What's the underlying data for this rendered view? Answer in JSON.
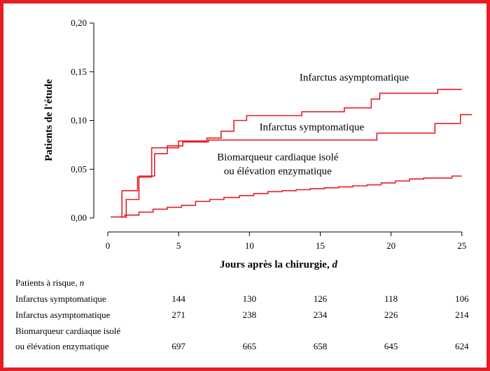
{
  "chart_data": {
    "type": "line",
    "style": "step",
    "ylabel": "Patients de l'étude",
    "xlabel_main": "Jours après la chirurgie, ",
    "xlabel_var": "d",
    "xlim": [
      0,
      25.8
    ],
    "ylim": [
      0,
      0.2
    ],
    "x_ticks": [
      0,
      5,
      10,
      15,
      20,
      25
    ],
    "x_tick_labels": [
      "0",
      "5",
      "10",
      "15",
      "20",
      "25"
    ],
    "y_ticks": [
      0,
      0.05,
      0.1,
      0.15,
      0.2
    ],
    "y_tick_labels": [
      "0,00",
      "0,05",
      "0,10",
      "0,15",
      "0,20"
    ],
    "line_color": "#e41f26",
    "series": [
      {
        "name": "Infarctus asymptomatique",
        "label_lines": [
          "Infarctus asymptomatique"
        ],
        "points": [
          [
            1,
            0
          ],
          [
            1,
            0.028
          ],
          [
            2.1,
            0.028
          ],
          [
            2.1,
            0.042
          ],
          [
            3.1,
            0.042
          ],
          [
            3.1,
            0.072
          ],
          [
            5,
            0.072
          ],
          [
            5,
            0.079
          ],
          [
            7,
            0.079
          ],
          [
            7,
            0.082
          ],
          [
            8,
            0.082
          ],
          [
            8,
            0.089
          ],
          [
            8.9,
            0.089
          ],
          [
            8.9,
            0.1
          ],
          [
            9.8,
            0.1
          ],
          [
            9.8,
            0.105
          ],
          [
            13.7,
            0.105
          ],
          [
            13.7,
            0.109
          ],
          [
            16.7,
            0.109
          ],
          [
            16.7,
            0.113
          ],
          [
            18.6,
            0.113
          ],
          [
            18.6,
            0.122
          ],
          [
            19.2,
            0.122
          ],
          [
            19.2,
            0.128
          ],
          [
            23.3,
            0.128
          ],
          [
            23.3,
            0.132
          ],
          [
            25,
            0.132
          ]
        ]
      },
      {
        "name": "Infarctus symptomatique",
        "label_lines": [
          "Infarctus symptomatique"
        ],
        "points": [
          [
            1.3,
            0
          ],
          [
            1.3,
            0.019
          ],
          [
            2.2,
            0.019
          ],
          [
            2.2,
            0.043
          ],
          [
            3.3,
            0.043
          ],
          [
            3.3,
            0.066
          ],
          [
            4.2,
            0.066
          ],
          [
            4.2,
            0.074
          ],
          [
            5.3,
            0.074
          ],
          [
            5.3,
            0.078
          ],
          [
            7.1,
            0.078
          ],
          [
            7.1,
            0.08
          ],
          [
            10,
            0.08
          ],
          [
            19,
            0.08
          ],
          [
            19,
            0.087
          ],
          [
            23.1,
            0.087
          ],
          [
            23.1,
            0.097
          ],
          [
            24.9,
            0.097
          ],
          [
            24.9,
            0.106
          ],
          [
            25.7,
            0.106
          ]
        ]
      },
      {
        "name": "Biomarqueur cardiaque isolé ou élévation enzymatique",
        "label_lines": [
          "Biomarqueur cardiaque isolé",
          "ou élévation enzymatique"
        ],
        "points": [
          [
            0.2,
            0.001
          ],
          [
            1.2,
            0.001
          ],
          [
            1.2,
            0.003
          ],
          [
            2.2,
            0.003
          ],
          [
            2.2,
            0.006
          ],
          [
            3.2,
            0.006
          ],
          [
            3.2,
            0.009
          ],
          [
            4.2,
            0.009
          ],
          [
            4.2,
            0.011
          ],
          [
            5.2,
            0.011
          ],
          [
            5.2,
            0.013
          ],
          [
            6.2,
            0.013
          ],
          [
            6.2,
            0.017
          ],
          [
            7.2,
            0.017
          ],
          [
            7.2,
            0.019
          ],
          [
            8.2,
            0.019
          ],
          [
            8.2,
            0.021
          ],
          [
            9.3,
            0.021
          ],
          [
            9.3,
            0.023
          ],
          [
            10.3,
            0.023
          ],
          [
            10.3,
            0.025
          ],
          [
            11.3,
            0.025
          ],
          [
            11.3,
            0.027
          ],
          [
            12.3,
            0.027
          ],
          [
            12.3,
            0.028
          ],
          [
            13.3,
            0.028
          ],
          [
            13.3,
            0.029
          ],
          [
            14.3,
            0.029
          ],
          [
            14.3,
            0.03
          ],
          [
            15.3,
            0.03
          ],
          [
            15.3,
            0.031
          ],
          [
            16.3,
            0.031
          ],
          [
            16.3,
            0.032
          ],
          [
            17.3,
            0.032
          ],
          [
            17.3,
            0.033
          ],
          [
            18.3,
            0.033
          ],
          [
            18.3,
            0.034
          ],
          [
            19.3,
            0.034
          ],
          [
            19.3,
            0.036
          ],
          [
            20.3,
            0.036
          ],
          [
            20.3,
            0.038
          ],
          [
            21.3,
            0.038
          ],
          [
            21.3,
            0.04
          ],
          [
            22.3,
            0.04
          ],
          [
            22.3,
            0.041
          ],
          [
            24.3,
            0.041
          ],
          [
            24.3,
            0.043
          ],
          [
            25,
            0.043
          ]
        ]
      }
    ],
    "risk_table": {
      "title_main": "Patients à risque, ",
      "title_var": "n",
      "rows": [
        {
          "label_lines": [
            "Infarctus symptomatique"
          ],
          "values": [
            "144",
            "130",
            "126",
            "118",
            "106"
          ]
        },
        {
          "label_lines": [
            "Infarctus asymptomatique"
          ],
          "values": [
            "271",
            "238",
            "234",
            "226",
            "214"
          ]
        },
        {
          "label_lines": [
            "Biomarqueur cardiaque isolé",
            "ou élévation enzymatique"
          ],
          "values": [
            "697",
            "665",
            "658",
            "645",
            "624"
          ]
        }
      ]
    }
  }
}
